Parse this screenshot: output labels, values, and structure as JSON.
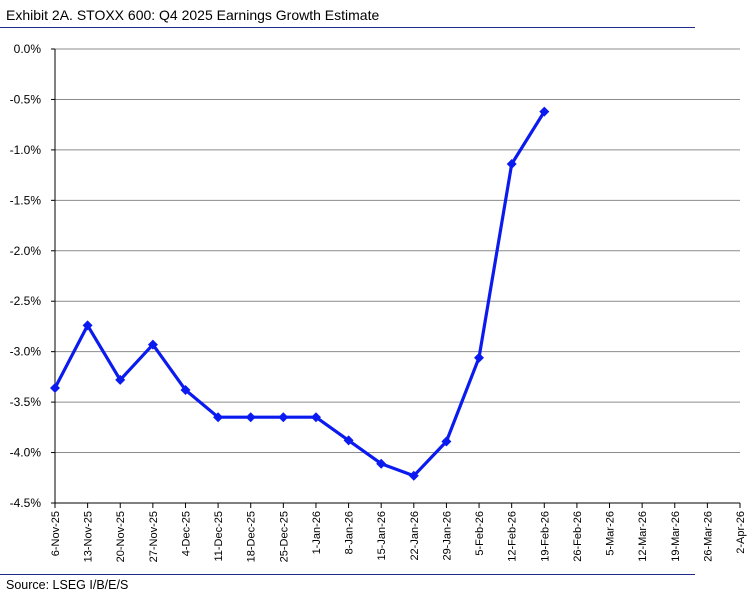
{
  "header": {
    "title": "Exhibit 2A.  STOXX 600: Q4 2025 Earnings Growth Estimate"
  },
  "footer": {
    "source": "Source: LSEG I/B/E/S"
  },
  "chart_data": {
    "type": "line",
    "title": "Exhibit 2A.  STOXX 600: Q4 2025 Earnings Growth Estimate",
    "xlabel": "",
    "ylabel": "",
    "ylim": [
      -4.5,
      0.0
    ],
    "y_ticks": [
      "0.0%",
      "-0.5%",
      "-1.0%",
      "-1.5%",
      "-2.0%",
      "-2.5%",
      "-3.0%",
      "-3.5%",
      "-4.0%",
      "-4.5%"
    ],
    "y_tick_values": [
      0.0,
      -0.5,
      -1.0,
      -1.5,
      -2.0,
      -2.5,
      -3.0,
      -3.5,
      -4.0,
      -4.5
    ],
    "grid": "horizontal",
    "legend": "none",
    "categories": [
      "6-Nov-25",
      "13-Nov-25",
      "20-Nov-25",
      "27-Nov-25",
      "4-Dec-25",
      "11-Dec-25",
      "18-Dec-25",
      "25-Dec-25",
      "1-Jan-26",
      "8-Jan-26",
      "15-Jan-26",
      "22-Jan-26",
      "29-Jan-26",
      "5-Feb-26",
      "12-Feb-26",
      "19-Feb-26",
      "26-Feb-26",
      "5-Mar-26",
      "12-Mar-26",
      "19-Mar-26",
      "26-Mar-26",
      "2-Apr-26"
    ],
    "series": [
      {
        "color": "#0b1bf0",
        "values": [
          -3.36,
          -2.74,
          -3.28,
          -2.93,
          -3.38,
          -3.65,
          -3.65,
          -3.65,
          -3.65,
          -3.88,
          -4.11,
          -4.23,
          -3.89,
          -3.06,
          -1.14,
          -0.62,
          null,
          null,
          null,
          null,
          null,
          null
        ]
      }
    ]
  }
}
